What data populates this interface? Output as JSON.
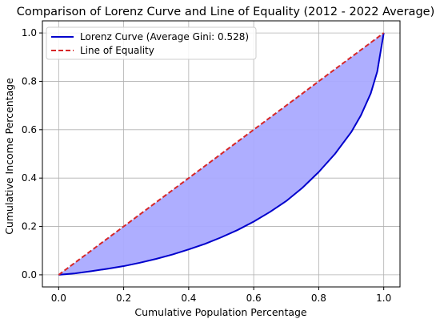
{
  "chart_data": {
    "type": "area",
    "title": "Comparison of Lorenz Curve and Line of Equality (2012 - 2022 Average)",
    "xlabel": "Cumulative Population Percentage",
    "ylabel": "Cumulative Income Percentage",
    "xlim": [
      -0.05,
      1.05
    ],
    "ylim": [
      -0.05,
      1.05
    ],
    "xticks": [
      "0.0",
      "0.2",
      "0.4",
      "0.6",
      "0.8",
      "1.0"
    ],
    "yticks": [
      "0.0",
      "0.2",
      "0.4",
      "0.6",
      "0.8",
      "1.0"
    ],
    "grid": true,
    "legend_position": "top-left",
    "series": [
      {
        "name": "Lorenz Curve (Average Gini: 0.528)",
        "style": "solid",
        "color": "#0000cc",
        "x": [
          0.0,
          0.05,
          0.1,
          0.15,
          0.2,
          0.25,
          0.3,
          0.35,
          0.4,
          0.45,
          0.5,
          0.55,
          0.6,
          0.65,
          0.7,
          0.75,
          0.8,
          0.85,
          0.9,
          0.93,
          0.96,
          0.98,
          1.0
        ],
        "y": [
          0.0,
          0.006,
          0.015,
          0.025,
          0.036,
          0.05,
          0.066,
          0.084,
          0.105,
          0.128,
          0.155,
          0.185,
          0.22,
          0.26,
          0.305,
          0.36,
          0.425,
          0.5,
          0.59,
          0.66,
          0.75,
          0.84,
          1.0
        ]
      },
      {
        "name": "Line of Equality",
        "style": "dashed",
        "color": "#d62728",
        "x": [
          0.0,
          1.0
        ],
        "y": [
          0.0,
          1.0
        ]
      }
    ],
    "fill_between": {
      "color": "#aaaaff",
      "description": "area between Lorenz curve and line of equality"
    }
  }
}
